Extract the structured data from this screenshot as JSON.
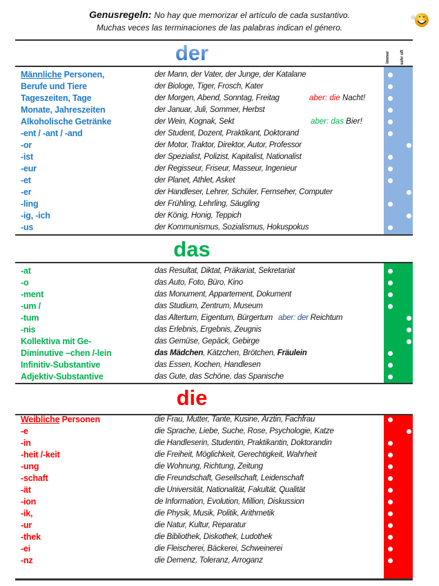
{
  "header": {
    "title_bold": "Genusregeln:",
    "title_line1": "No hay que memorizar el artículo de cada sustantivo.",
    "title_line2": "Muchas veces las terminaciones de las palabras indican el género.",
    "column_immer": "immer",
    "column_sehr_oft": "sehr oft",
    "icon": "smiley-waving-icon"
  },
  "colors": {
    "der": "#8DB3E2",
    "der_text": "#1F7BC8",
    "das": "#00B050",
    "die": "#FF0000"
  },
  "sections": [
    {
      "article": "der",
      "rows": [
        {
          "label_u": "Männliche",
          "label": " Personen,",
          "examples": "der Mann, der Vater, der Junge, der Katalane",
          "freq": "immer"
        },
        {
          "label": "Berufe und Tiere",
          "examples": "der Biologe, Tiger, Frosch, Kater",
          "freq": "immer"
        },
        {
          "label": "Tageszeiten, Tage",
          "examples": "der Morgen, Abend, Sonntag, Freitag",
          "note_colored": "aber: die",
          "note_rest": " Nacht!",
          "note_color": "#FF0000",
          "freq": "immer"
        },
        {
          "label": "Monate, Jahreszeiten",
          "examples": "der Januar, Juli, Sommer, Herbst",
          "freq": "immer"
        },
        {
          "label": "Alkoholische Getränke",
          "examples": "der Wein, Kognak, Sekt",
          "note_colored": "aber: das",
          "note_rest": " Bier!",
          "note_color": "#00B050",
          "freq": "immer"
        },
        {
          "label": "-ent / -ant  / -and",
          "examples": "der Student, Dozent, Praktikant, Doktorand",
          "freq": "immer"
        },
        {
          "label": "-or",
          "examples": "der Motor, Traktor, Direktor, Autor, Professor",
          "freq": "sehr oft"
        },
        {
          "label": "-ist",
          "examples": "der Spezialist, Polizist, Kapitalist, Nationalist",
          "freq": "immer"
        },
        {
          "label": "-eur",
          "examples": "der Regisseur, Friseur, Masseur, Ingenieur",
          "freq": "immer"
        },
        {
          "label": "-et",
          "examples": "der Planet, Athlet, Asket",
          "freq": "immer"
        },
        {
          "label": "-er",
          "examples": "der Handleser, Lehrer, Schüler, Fernseher, Computer",
          "freq": "sehr oft"
        },
        {
          "label": "-ling",
          "examples": "der Frühling, Lehrling, Säugling",
          "freq": "immer"
        },
        {
          "label": "-ig, -ich",
          "examples": "der König, Honig, Teppich",
          "freq": "sehr oft"
        },
        {
          "label": "-us",
          "examples": "der Kommunismus, Sozialismus, Hokuspokus",
          "freq": "immer"
        }
      ]
    },
    {
      "article": "das",
      "rows": [
        {
          "label": "-at",
          "examples": "das Resultat, Diktat, Präkariat, Sekretariat",
          "freq": "immer"
        },
        {
          "label": "-o",
          "examples": "das Auto, Foto, Büro, Kino",
          "freq": "immer"
        },
        {
          "label": "-ment",
          "examples": "das Monument, Appartement, Dokument",
          "freq": "immer"
        },
        {
          "label": "-um /",
          "examples": "das Studium, Zentrum, Museum",
          "freq": "immer"
        },
        {
          "label": "-tum",
          "examples": "das Altertum, Eigentum, Bürgertum",
          "note_colored": "aber: der",
          "note_rest": " Reichtum",
          "note_color": "#2E4A8A",
          "freq": "sehr oft"
        },
        {
          "label": "-nis",
          "examples": "das Erlebnis, Ergebnis, Zeugnis",
          "freq": "sehr oft"
        },
        {
          "label": "Kollektiva mit Ge-",
          "examples": "das Gemüse, Gepäck, Gebirge",
          "freq": "sehr oft"
        },
        {
          "label": "Diminutive –chen /-lein",
          "examples_bold": "das Mädchen",
          "examples": ", Kätzchen, Brötchen, ",
          "examples_bold2": "Fräulein",
          "freq": "immer"
        },
        {
          "label": "Infinitiv-Substantive",
          "examples": "das Essen, Kochen, Handlesen",
          "freq": "immer"
        },
        {
          "label": "Adjektiv-Substantive",
          "examples": "das Gute, das Schöne, das Spanische",
          "freq": "immer"
        }
      ]
    },
    {
      "article": "die",
      "rows": [
        {
          "label_u": "Weibliche",
          "label": " Personen",
          "examples": "die Frau, Mutter, Tante, Kusine, Ärztin, Fachfrau",
          "freq": "immer"
        },
        {
          "label": "-e",
          "examples": "die Sprache, Liebe, Suche, Rose, Psychologie, Katze",
          "freq": "sehr oft"
        },
        {
          "label": "-in",
          "examples": "die Handleserin, Studentin, Praktikantin, Doktorandin",
          "freq": "immer"
        },
        {
          "label": "-heit /-keit",
          "examples": "die Freiheit, Möglichkeit, Gerechtigkeit, Wahrheit",
          "freq": "immer"
        },
        {
          "label": "-ung",
          "examples": "die Wohnung, Richtung, Zeitung",
          "freq": "immer"
        },
        {
          "label": "-schaft",
          "examples": "die Freundschaft, Gesellschaft, Leidenschaft",
          "freq": "immer"
        },
        {
          "label": "-ät",
          "examples": "die Universität, Nationalität, Fakultät, Qualität",
          "freq": "immer"
        },
        {
          "label": "-ion",
          "examples": "de Information, Evolution, Million, Diskussion",
          "freq": "immer"
        },
        {
          "label": "-ik,",
          "examples": "die Physik, Musik, Politik, Arithmetik",
          "freq": "immer"
        },
        {
          "label": "-ur",
          "examples": "die Natur, Kultur, Reparatur",
          "freq": "immer"
        },
        {
          "label": "-thek",
          "examples": "die Bibliothek, Diskothek, Ludothek",
          "freq": "immer"
        },
        {
          "label": "-ei",
          "examples": "die Fleischerei, Bäckerei, Schweinerei",
          "freq": "immer"
        },
        {
          "label": "-nz",
          "examples": "die Demenz, Toleranz, Arroganz",
          "freq": "immer"
        }
      ]
    }
  ]
}
